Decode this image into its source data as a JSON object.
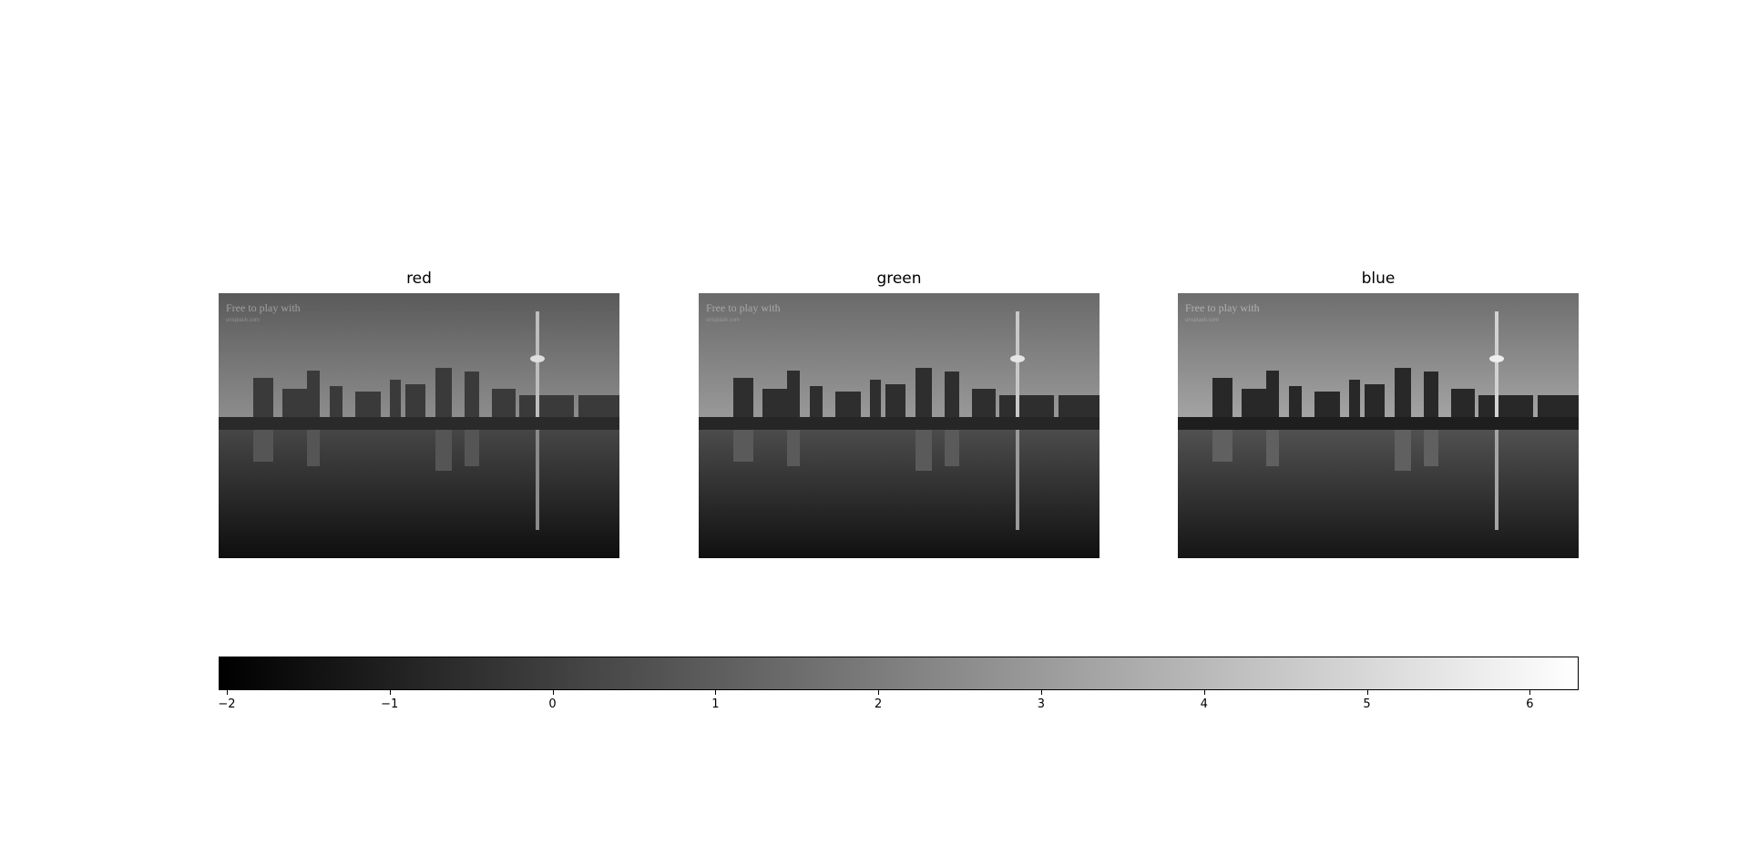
{
  "panels": [
    {
      "title": "red",
      "watermark_line1": "Free to play with",
      "watermark_line2": "unsplash.com"
    },
    {
      "title": "green",
      "watermark_line1": "Free to play with",
      "watermark_line2": "unsplash.com"
    },
    {
      "title": "blue",
      "watermark_line1": "Free to play with",
      "watermark_line2": "unsplash.com"
    }
  ],
  "colorbar": {
    "colormap": "gray",
    "min": -2.05,
    "max": 6.3,
    "ticks": [
      "−2",
      "−1",
      "0",
      "1",
      "2",
      "3",
      "4",
      "5",
      "6"
    ],
    "tick_values": [
      -2,
      -1,
      0,
      1,
      2,
      3,
      4,
      5,
      6
    ]
  }
}
